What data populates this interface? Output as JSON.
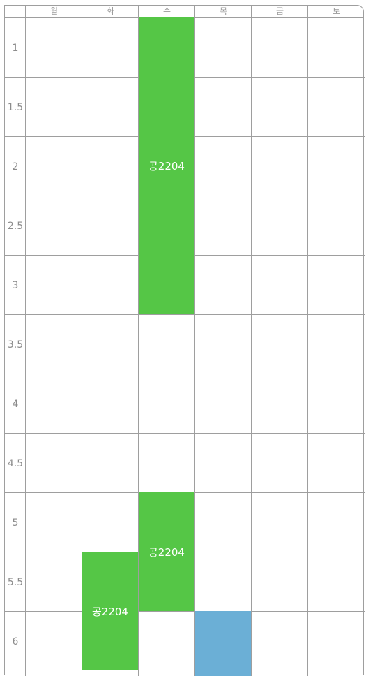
{
  "days": [
    "월",
    "화",
    "수",
    "목",
    "금",
    "토"
  ],
  "times": [
    "1",
    "1.5",
    "2",
    "2.5",
    "3",
    "3.5",
    "4",
    "4.5",
    "5",
    "5.5",
    "6"
  ],
  "events": [
    {
      "label": "공2204",
      "day": "수",
      "start": "1",
      "end": "3.5",
      "color": "#55c646"
    },
    {
      "label": "공2204",
      "day": "수",
      "start": "5",
      "end": "6",
      "color": "#55c646"
    },
    {
      "label": "공2204",
      "day": "화",
      "start": "5.5",
      "end": "6",
      "color": "#55c646"
    },
    {
      "label": "",
      "day": "목",
      "start": "6",
      "end": "",
      "color": "#6bafd6"
    }
  ]
}
